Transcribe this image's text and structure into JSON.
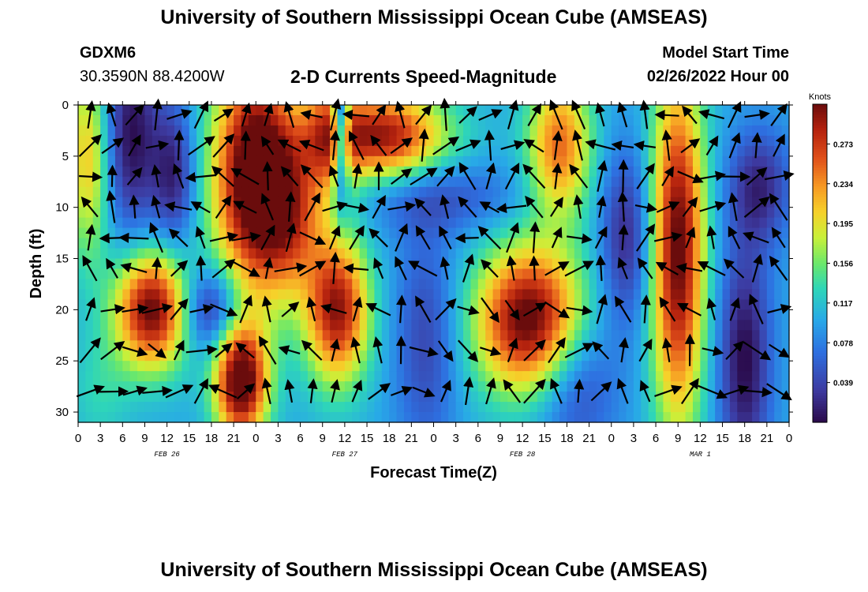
{
  "title": "University of Southern Mississippi Ocean Cube (AMSEAS)",
  "title_repeat": "University of Southern Mississippi Ocean Cube (AMSEAS)",
  "station": "GDXM6",
  "coords": "30.3590N  88.4200W",
  "subtitle": "2-D Currents Speed-Magnitude",
  "start_label": "Model Start Time",
  "start_value": "02/26/2022 Hour 00",
  "chart_data": {
    "type": "heatmap",
    "xlabel": "Forecast Time(Z)",
    "ylabel": "Depth (ft)",
    "x_ticks": [
      "0",
      "3",
      "6",
      "9",
      "12",
      "15",
      "18",
      "21",
      "0",
      "3",
      "6",
      "9",
      "12",
      "15",
      "18",
      "21",
      "0",
      "3",
      "6",
      "9",
      "12",
      "15",
      "18",
      "21",
      "0",
      "3",
      "6",
      "9",
      "12",
      "15",
      "18",
      "21",
      "0"
    ],
    "date_labels": [
      {
        "text": "FEB 26",
        "hour": 12
      },
      {
        "text": "FEB 27",
        "hour": 36
      },
      {
        "text": "FEB 28",
        "hour": 60
      },
      {
        "text": "MAR 1",
        "hour": 84
      }
    ],
    "xlim_hours": [
      0,
      96
    ],
    "ylim_ft": [
      0,
      31
    ],
    "y_ticks": [
      0,
      5,
      10,
      15,
      20,
      25,
      30
    ],
    "colorbar": {
      "unit": "Knots",
      "ticks": [
        "0.273",
        "0.234",
        "0.195",
        "0.156",
        "0.117",
        "0.078",
        "0.039"
      ],
      "tick_values": [
        0.273,
        0.234,
        0.195,
        0.156,
        0.117,
        0.078,
        0.039
      ],
      "range": [
        0.0,
        0.312
      ]
    },
    "blobs": [
      {
        "h": 1.5,
        "d": 5,
        "sh": 2.2,
        "sd": 7,
        "a": 0.12
      },
      {
        "h": 7,
        "d": 3,
        "sh": 3,
        "sd": 7,
        "a": -0.1
      },
      {
        "h": 13,
        "d": 7,
        "sh": 2,
        "sd": 5,
        "a": -0.08
      },
      {
        "h": 24,
        "d": 7,
        "sh": 4,
        "sd": 8,
        "a": 0.26
      },
      {
        "h": 29,
        "d": 11,
        "sh": 3,
        "sd": 5,
        "a": 0.1
      },
      {
        "h": 34,
        "d": 3,
        "sh": 2.5,
        "sd": 5,
        "a": 0.1
      },
      {
        "h": 35.5,
        "d": 2,
        "sh": 0.8,
        "sd": 5,
        "a": -0.18
      },
      {
        "h": 10,
        "d": 20,
        "sh": 3.5,
        "sd": 4,
        "a": 0.22
      },
      {
        "h": 35,
        "d": 20,
        "sh": 3,
        "sd": 5,
        "a": 0.2
      },
      {
        "h": 22,
        "d": 27,
        "sh": 2.5,
        "sd": 4,
        "a": 0.24
      },
      {
        "h": 18,
        "d": 20,
        "sh": 3,
        "sd": 3,
        "a": -0.1
      },
      {
        "h": 41,
        "d": 3,
        "sh": 6,
        "sd": 3,
        "a": 0.2
      },
      {
        "h": 49,
        "d": 9,
        "sh": 8,
        "sd": 2.5,
        "a": -0.05
      },
      {
        "h": 61,
        "d": 21,
        "sh": 5,
        "sd": 5,
        "a": 0.23
      },
      {
        "h": 65,
        "d": 4,
        "sh": 3,
        "sd": 5,
        "a": 0.15
      },
      {
        "h": 47,
        "d": 23,
        "sh": 3,
        "sd": 8,
        "a": -0.06
      },
      {
        "h": 74,
        "d": 13,
        "sh": 2.5,
        "sd": 6,
        "a": -0.08
      },
      {
        "h": 67,
        "d": 27,
        "sh": 4,
        "sd": 5,
        "a": -0.07
      },
      {
        "h": 81,
        "d": 14,
        "sh": 2.5,
        "sd": 12,
        "a": 0.22
      },
      {
        "h": 90,
        "d": 25,
        "sh": 2.5,
        "sd": 8,
        "a": -0.1
      },
      {
        "h": 92,
        "d": 8,
        "sh": 3,
        "sd": 4,
        "a": -0.08
      },
      {
        "h": 3,
        "d": 28,
        "sh": 3,
        "sd": 4,
        "a": 0.03
      }
    ],
    "base_speed": 0.1,
    "vector_rows_ft": [
      1,
      4,
      7,
      10,
      13,
      16,
      20,
      24,
      28
    ],
    "vector_step_hours": 3
  }
}
